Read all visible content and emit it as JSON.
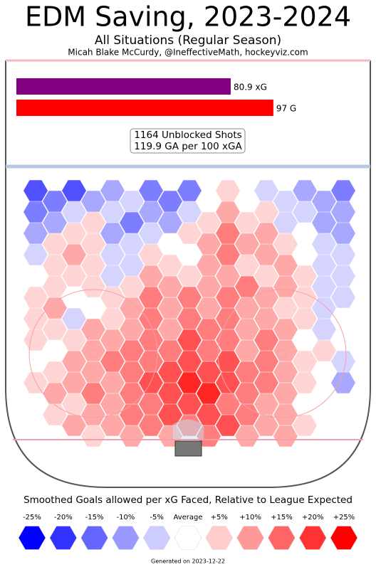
{
  "chart_data": {
    "type": "hexbin",
    "title": "EDM Saving, 2023-2024",
    "subtitle": "All Situations (Regular Season)",
    "credit": "Micah Blake McCurdy, @IneffectiveMath, hockeyviz.com",
    "bars": {
      "values": [
        80.9,
        97
      ],
      "value_labels": [
        "80.9 xG",
        "97 G"
      ],
      "colors": [
        "#800080",
        "#ff0000"
      ]
    },
    "notes": [
      "1164 Unblocked Shots",
      "119.9 GA per 100 xGA"
    ],
    "hex_values": [
      [
        -20,
        -15,
        -20,
        -10,
        -10,
        -5,
        -15,
        -15,
        -15,
        0,
        5,
        0,
        -5,
        -5,
        -10,
        -10,
        -15
      ],
      [
        -15,
        -10,
        -5,
        5,
        -5,
        -15,
        -10,
        -10,
        -5,
        5,
        10,
        5,
        5,
        -5,
        -5,
        -10,
        -10
      ],
      [
        -10,
        5,
        5,
        5,
        -10,
        -5,
        -5,
        0,
        5,
        10,
        15,
        10,
        10,
        5,
        0,
        -5,
        -10
      ],
      [
        -5,
        5,
        10,
        5,
        -5,
        -5,
        5,
        5,
        0,
        10,
        15,
        5,
        10,
        10,
        0,
        -5,
        -5
      ],
      [
        0,
        5,
        5,
        5,
        -5,
        5,
        10,
        10,
        5,
        10,
        10,
        15,
        5,
        10,
        5,
        -5,
        -5
      ],
      [
        5,
        10,
        0,
        0,
        5,
        10,
        15,
        10,
        15,
        10,
        15,
        10,
        10,
        5,
        5,
        -5,
        -5
      ],
      [
        5,
        5,
        -5,
        10,
        5,
        10,
        15,
        10,
        15,
        15,
        15,
        10,
        10,
        10,
        5,
        -5,
        0
      ],
      [
        5,
        0,
        5,
        10,
        10,
        15,
        15,
        15,
        20,
        15,
        15,
        10,
        15,
        10,
        0,
        5,
        0
      ],
      [
        0,
        5,
        10,
        10,
        15,
        15,
        15,
        20,
        20,
        20,
        20,
        15,
        15,
        10,
        5,
        0,
        -5
      ],
      [
        5,
        10,
        10,
        15,
        10,
        15,
        20,
        20,
        25,
        25,
        20,
        15,
        15,
        10,
        5,
        0,
        -10
      ],
      [
        0,
        5,
        5,
        10,
        10,
        15,
        15,
        20,
        20,
        20,
        15,
        15,
        10,
        10,
        0,
        0,
        0
      ],
      [
        0,
        0,
        10,
        5,
        10,
        10,
        15,
        10,
        15,
        15,
        20,
        10,
        10,
        10,
        5,
        0,
        0
      ]
    ],
    "legend_title": "Smoothed Goals allowed per xG Faced, Relative to League Expected",
    "legend": [
      {
        "value": -25,
        "label": "-25%"
      },
      {
        "value": -20,
        "label": "-20%"
      },
      {
        "value": -15,
        "label": "-15%"
      },
      {
        "value": -10,
        "label": "-10%"
      },
      {
        "value": -5,
        "label": "-5%"
      },
      {
        "value": 0,
        "label": "Average"
      },
      {
        "value": 5,
        "label": "+5%"
      },
      {
        "value": 10,
        "label": "+10%"
      },
      {
        "value": 15,
        "label": "+15%"
      },
      {
        "value": 20,
        "label": "+20%"
      },
      {
        "value": 25,
        "label": "+25%"
      }
    ],
    "legend_colors": [
      "#0000ff",
      "#3333ff",
      "#6666ff",
      "#9999ff",
      "#ccccff",
      "#ffffff",
      "#ffcccc",
      "#ff9999",
      "#ff6666",
      "#ff3333",
      "#ff0000"
    ],
    "generated": "Generated on 2023-12-22"
  }
}
